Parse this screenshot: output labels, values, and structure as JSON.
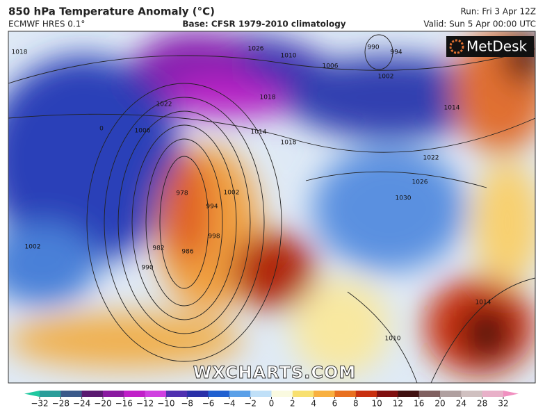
{
  "header": {
    "title": "850 hPa Temperature Anomaly (°C)",
    "model": "ECMWF HRES 0.1°",
    "base": "Base: CFSR 1979-2010 climatology",
    "run": "Run: Fri 3 Apr 12Z",
    "valid": "Valid: Sun 5 Apr 00:00 UTC"
  },
  "logo": "MetDesk",
  "watermark": "WXCHARTS.COM",
  "isobar_labels": [
    1018,
    1026,
    1010,
    990,
    994,
    1006,
    1002,
    1022,
    1018,
    1014,
    1006,
    1014,
    1018,
    0,
    1022,
    978,
    994,
    1002,
    1026,
    1030,
    982,
    986,
    998,
    990,
    1002,
    1014,
    1010
  ],
  "colorbar": {
    "ticks": [
      {
        "value": -32,
        "label": "−32"
      },
      {
        "value": -28,
        "label": "−28"
      },
      {
        "value": -24,
        "label": "−24"
      },
      {
        "value": -20,
        "label": "−20"
      },
      {
        "value": -16,
        "label": "−16"
      },
      {
        "value": -12,
        "label": "−12"
      },
      {
        "value": -10,
        "label": "−10"
      },
      {
        "value": -8,
        "label": "−8"
      },
      {
        "value": -6,
        "label": "−6"
      },
      {
        "value": -4,
        "label": "−4"
      },
      {
        "value": -2,
        "label": "−2"
      },
      0,
      2,
      4,
      6,
      8,
      10,
      12,
      16,
      20,
      24,
      28,
      32
    ],
    "colors": [
      "#2a9d9a",
      "#3b5a8a",
      "#5a1a70",
      "#8a1aa0",
      "#c020c8",
      "#d040e0",
      "#5030b0",
      "#2a30a8",
      "#2060d0",
      "#5aa0e8",
      "#c0e0f8",
      "#fafae0",
      "#f8e070",
      "#f8b040",
      "#e87020",
      "#c83010",
      "#801010",
      "#401010",
      "#806060",
      "#b0a0a0",
      "#d0c0c0",
      "#e8b0c8"
    ],
    "under_color": "#20c8a0",
    "over_color": "#f090c0"
  }
}
